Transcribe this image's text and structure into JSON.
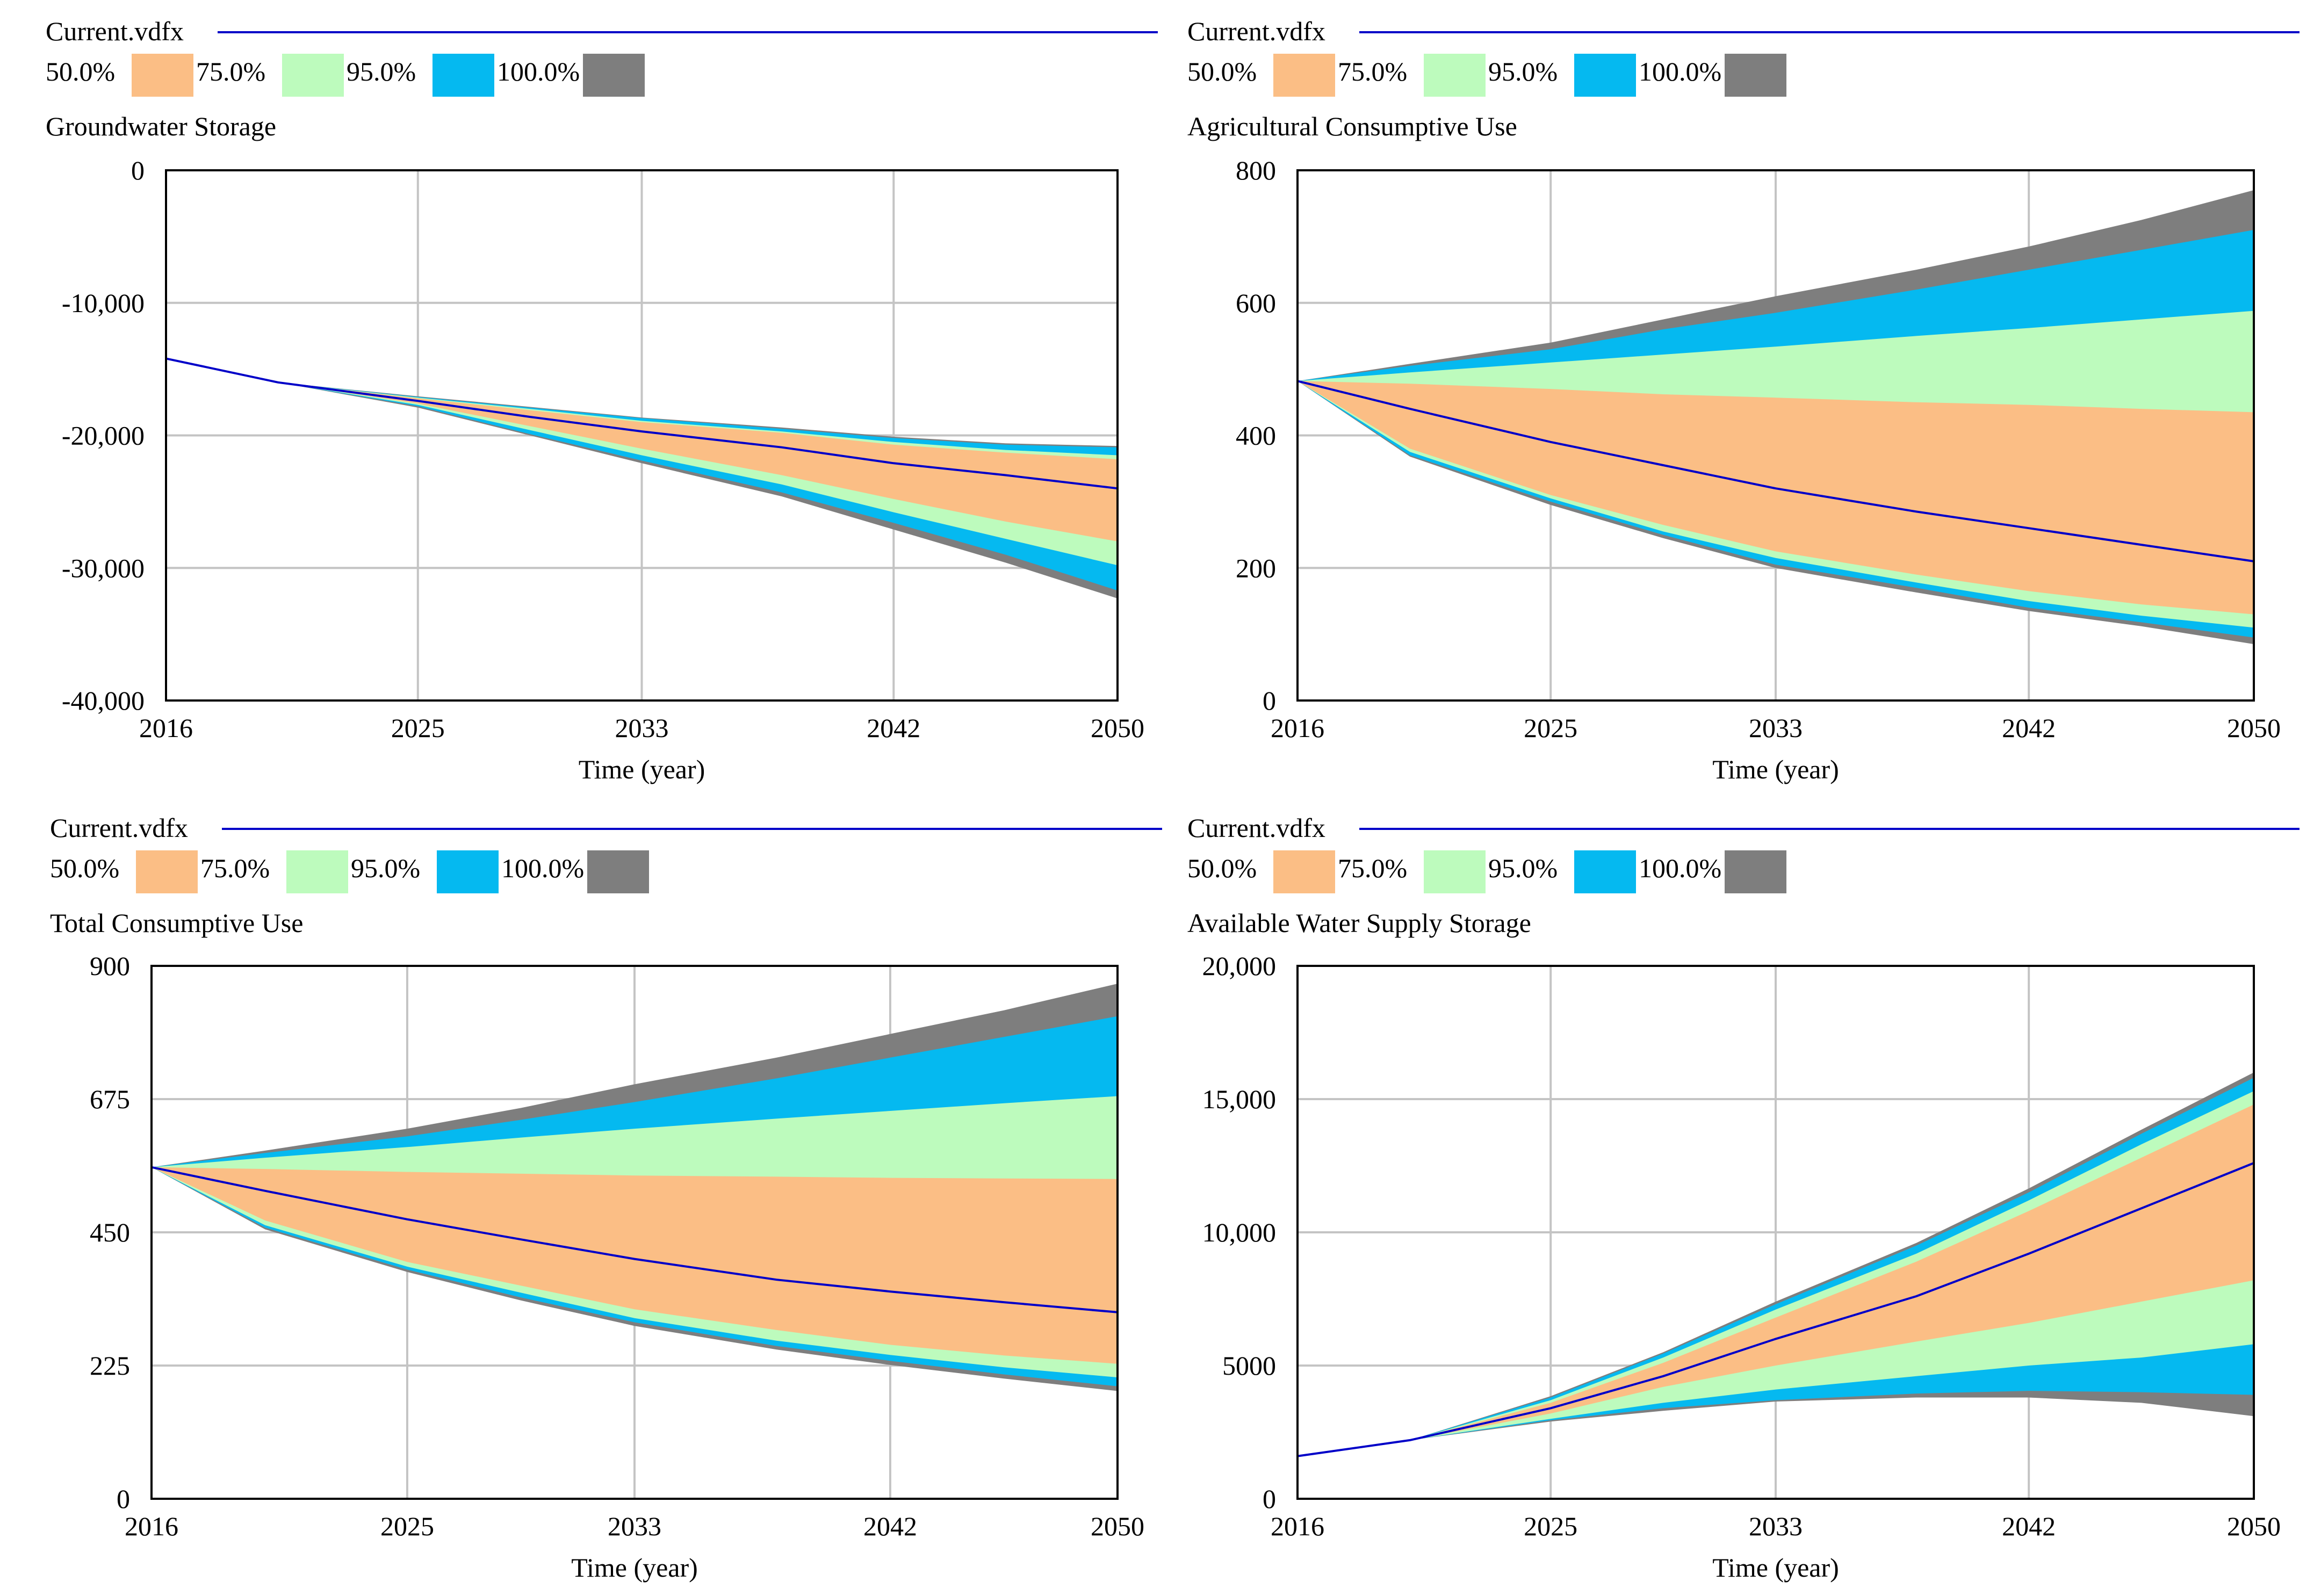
{
  "colors": {
    "background": "#ffffff",
    "median_line": "#0000c8",
    "band_50": "#fbbe85",
    "band_75": "#bdfbbd",
    "band_95": "#05b9f0",
    "band_100": "#7e7e7e",
    "grid": "#c4c4c4",
    "axis": "#000000"
  },
  "legend": {
    "run_label": "Current.vdfx",
    "bands": [
      {
        "label": "50.0%",
        "color_key": "band_50"
      },
      {
        "label": "75.0%",
        "color_key": "band_75"
      },
      {
        "label": "95.0%",
        "color_key": "band_95"
      },
      {
        "label": "100.0%",
        "color_key": "band_100"
      }
    ]
  },
  "chart_data": [
    {
      "type": "area",
      "title": "Groundwater Storage",
      "xlabel": "Time (year)",
      "ylabel": "",
      "xlim": [
        2016,
        2050
      ],
      "ylim": [
        -40000,
        0
      ],
      "x_ticks": [
        2016,
        2025,
        2033,
        2042,
        2050
      ],
      "x_tick_labels": [
        "2016",
        "2025",
        "2033",
        "2042",
        "2050"
      ],
      "y_ticks": [
        0,
        -10000,
        -20000,
        -30000,
        -40000
      ],
      "y_tick_labels": [
        "0",
        "-10,000",
        "-20,000",
        "-30,000",
        "-40,000"
      ],
      "x": [
        2016,
        2020,
        2025,
        2029,
        2033,
        2038,
        2042,
        2046,
        2050
      ],
      "median": [
        -14200,
        -16000,
        -17400,
        -18600,
        -19700,
        -20900,
        -22100,
        -23000,
        -24000
      ],
      "bands": {
        "p50": {
          "upper": [
            -14200,
            -16000,
            -17200,
            -18100,
            -19000,
            -19800,
            -20700,
            -21300,
            -21800
          ],
          "lower": [
            -14200,
            -16000,
            -17600,
            -19300,
            -21000,
            -23000,
            -24800,
            -26500,
            -28000
          ]
        },
        "p75": {
          "upper": [
            -14200,
            -16000,
            -17150,
            -18000,
            -18900,
            -19700,
            -20500,
            -21100,
            -21500
          ],
          "lower": [
            -14200,
            -16000,
            -17700,
            -19600,
            -21500,
            -23700,
            -25800,
            -27800,
            -29800
          ]
        },
        "p95": {
          "upper": [
            -14200,
            -16000,
            -17100,
            -17900,
            -18700,
            -19500,
            -20200,
            -20700,
            -20900
          ],
          "lower": [
            -14200,
            -16000,
            -17800,
            -19900,
            -21900,
            -24300,
            -26600,
            -29000,
            -31700
          ]
        },
        "p100": {
          "upper": [
            -14200,
            -16000,
            -17050,
            -17850,
            -18650,
            -19400,
            -20100,
            -20600,
            -20800
          ],
          "lower": [
            -14200,
            -16000,
            -17900,
            -20000,
            -22100,
            -24600,
            -27100,
            -29600,
            -32300
          ]
        }
      }
    },
    {
      "type": "area",
      "title": "Agricultural Consumptive Use",
      "xlabel": "Time (year)",
      "ylabel": "",
      "xlim": [
        2016,
        2050
      ],
      "ylim": [
        0,
        800
      ],
      "x_ticks": [
        2016,
        2025,
        2033,
        2042,
        2050
      ],
      "x_tick_labels": [
        "2016",
        "2025",
        "2033",
        "2042",
        "2050"
      ],
      "y_ticks": [
        0,
        200,
        400,
        600,
        800
      ],
      "y_tick_labels": [
        "0",
        "200",
        "400",
        "600",
        "800"
      ],
      "x": [
        2016,
        2020,
        2025,
        2029,
        2033,
        2038,
        2042,
        2046,
        2050
      ],
      "median": [
        482,
        440,
        390,
        355,
        320,
        285,
        260,
        235,
        210
      ],
      "bands": {
        "p50": {
          "upper": [
            482,
            478,
            470,
            462,
            457,
            450,
            446,
            440,
            435
          ],
          "lower": [
            482,
            380,
            310,
            265,
            225,
            190,
            165,
            145,
            130
          ]
        },
        "p75": {
          "upper": [
            482,
            495,
            510,
            522,
            534,
            550,
            562,
            575,
            588
          ],
          "lower": [
            482,
            375,
            305,
            255,
            215,
            178,
            150,
            128,
            110
          ]
        },
        "p95": {
          "upper": [
            482,
            505,
            530,
            560,
            585,
            620,
            650,
            680,
            710
          ],
          "lower": [
            482,
            370,
            300,
            250,
            205,
            170,
            140,
            118,
            95
          ]
        },
        "p100": {
          "upper": [
            482,
            508,
            540,
            575,
            610,
            650,
            685,
            725,
            770
          ],
          "lower": [
            482,
            368,
            295,
            245,
            200,
            163,
            135,
            112,
            85
          ]
        }
      }
    },
    {
      "type": "area",
      "title": "Total Consumptive Use",
      "xlabel": "Time (year)",
      "ylabel": "",
      "xlim": [
        2016,
        2050
      ],
      "ylim": [
        0,
        900
      ],
      "x_ticks": [
        2016,
        2025,
        2033,
        2042,
        2050
      ],
      "x_tick_labels": [
        "2016",
        "2025",
        "2033",
        "2042",
        "2050"
      ],
      "y_ticks": [
        0,
        225,
        450,
        675,
        900
      ],
      "y_tick_labels": [
        "0",
        "225",
        "450",
        "675",
        "900"
      ],
      "x": [
        2016,
        2020,
        2025,
        2029,
        2033,
        2038,
        2042,
        2046,
        2050
      ],
      "median": [
        560,
        520,
        472,
        438,
        405,
        370,
        350,
        332,
        315
      ],
      "bands": {
        "p50": {
          "upper": [
            560,
            557,
            552,
            549,
            546,
            544,
            542,
            541,
            540
          ],
          "lower": [
            560,
            470,
            400,
            360,
            320,
            285,
            260,
            242,
            228
          ]
        },
        "p75": {
          "upper": [
            560,
            576,
            594,
            610,
            625,
            642,
            655,
            668,
            680
          ],
          "lower": [
            560,
            462,
            392,
            348,
            305,
            267,
            243,
            222,
            205
          ]
        },
        "p95": {
          "upper": [
            560,
            584,
            612,
            640,
            670,
            710,
            745,
            780,
            815
          ],
          "lower": [
            560,
            458,
            387,
            340,
            298,
            258,
            233,
            210,
            190
          ]
        },
        "p100": {
          "upper": [
            560,
            588,
            625,
            660,
            700,
            745,
            785,
            825,
            870
          ],
          "lower": [
            560,
            455,
            383,
            335,
            292,
            252,
            226,
            203,
            182
          ]
        }
      }
    },
    {
      "type": "area",
      "title": "Available Water Supply Storage",
      "xlabel": "Time (year)",
      "ylabel": "",
      "xlim": [
        2016,
        2050
      ],
      "ylim": [
        0,
        20000
      ],
      "x_ticks": [
        2016,
        2025,
        2033,
        2042,
        2050
      ],
      "x_tick_labels": [
        "2016",
        "2025",
        "2033",
        "2042",
        "2050"
      ],
      "y_ticks": [
        0,
        5000,
        10000,
        15000,
        20000
      ],
      "y_tick_labels": [
        "0",
        "5000",
        "10,000",
        "15,000",
        "20,000"
      ],
      "x": [
        2016,
        2020,
        2025,
        2029,
        2033,
        2038,
        2042,
        2046,
        2050
      ],
      "median": [
        1600,
        2200,
        3400,
        4600,
        6000,
        7600,
        9200,
        10900,
        12600
      ],
      "bands": {
        "p50": {
          "upper": [
            1600,
            2200,
            3600,
            5100,
            6800,
            8900,
            10800,
            12800,
            14800
          ],
          "lower": [
            1600,
            2200,
            3200,
            4200,
            5000,
            5900,
            6600,
            7400,
            8200
          ]
        },
        "p75": {
          "upper": [
            1600,
            2200,
            3700,
            5300,
            7100,
            9200,
            11200,
            13300,
            15300
          ],
          "lower": [
            1600,
            2200,
            3000,
            3600,
            4100,
            4600,
            5000,
            5300,
            5800
          ]
        },
        "p95": {
          "upper": [
            1600,
            2200,
            3800,
            5450,
            7300,
            9500,
            11500,
            13700,
            15800
          ],
          "lower": [
            1600,
            2200,
            2950,
            3400,
            3700,
            3950,
            4050,
            4000,
            3900
          ]
        },
        "p100": {
          "upper": [
            1600,
            2200,
            3850,
            5500,
            7400,
            9600,
            11650,
            13850,
            16000
          ],
          "lower": [
            1600,
            2200,
            2900,
            3300,
            3650,
            3800,
            3800,
            3600,
            3100
          ]
        }
      }
    }
  ]
}
